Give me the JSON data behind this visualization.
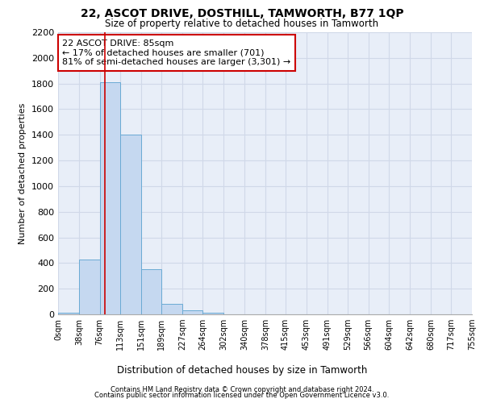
{
  "title": "22, ASCOT DRIVE, DOSTHILL, TAMWORTH, B77 1QP",
  "subtitle": "Size of property relative to detached houses in Tamworth",
  "xlabel": "Distribution of detached houses by size in Tamworth",
  "ylabel": "Number of detached properties",
  "bar_color": "#c5d8f0",
  "bar_edge_color": "#6aaad4",
  "background_color": "#e8eef8",
  "grid_color": "#d0d8e8",
  "bins": [
    0,
    38,
    76,
    113,
    151,
    189,
    227,
    264,
    302,
    340,
    378,
    415,
    453,
    491,
    529,
    566,
    604,
    642,
    680,
    717,
    755
  ],
  "values": [
    15,
    430,
    1810,
    1400,
    350,
    80,
    30,
    15,
    0,
    0,
    0,
    0,
    0,
    0,
    0,
    0,
    0,
    0,
    0,
    0
  ],
  "property_size": 85,
  "annotation_line1": "22 ASCOT DRIVE: 85sqm",
  "annotation_line2": "← 17% of detached houses are smaller (701)",
  "annotation_line3": "81% of semi-detached houses are larger (3,301) →",
  "vline_color": "#cc0000",
  "ylim": [
    0,
    2200
  ],
  "footer1": "Contains HM Land Registry data © Crown copyright and database right 2024.",
  "footer2": "Contains public sector information licensed under the Open Government Licence v3.0.",
  "tick_labels": [
    "0sqm",
    "38sqm",
    "76sqm",
    "113sqm",
    "151sqm",
    "189sqm",
    "227sqm",
    "264sqm",
    "302sqm",
    "340sqm",
    "378sqm",
    "415sqm",
    "453sqm",
    "491sqm",
    "529sqm",
    "566sqm",
    "604sqm",
    "642sqm",
    "680sqm",
    "717sqm",
    "755sqm"
  ],
  "yticks": [
    0,
    200,
    400,
    600,
    800,
    1000,
    1200,
    1400,
    1600,
    1800,
    2000,
    2200
  ]
}
